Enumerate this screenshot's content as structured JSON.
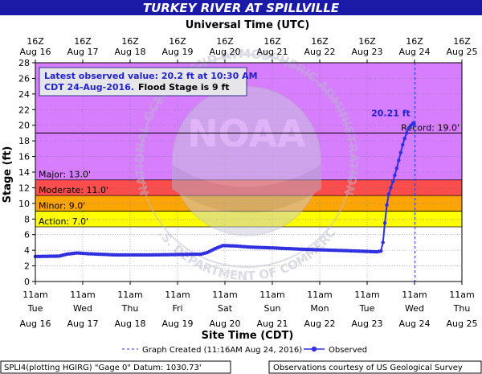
{
  "chart_data": {
    "type": "line",
    "title": "TURKEY RIVER AT SPILLVILLE",
    "top_axis_title": "Universal Time (UTC)",
    "xlabel": "Site Time (CDT)",
    "ylabel": "Stage (ft)",
    "ylim": [
      0,
      28
    ],
    "y_ticks": [
      0,
      2,
      4,
      6,
      8,
      10,
      12,
      14,
      16,
      18,
      20,
      22,
      24,
      26,
      28
    ],
    "xlim": [
      "2016-08-16 11:00",
      "2016-08-25 11:00"
    ],
    "grid": true,
    "top_ticks": [
      {
        "hour": "16Z",
        "date": "Aug 16"
      },
      {
        "hour": "16Z",
        "date": "Aug 17"
      },
      {
        "hour": "16Z",
        "date": "Aug 18"
      },
      {
        "hour": "16Z",
        "date": "Aug 19"
      },
      {
        "hour": "16Z",
        "date": "Aug 20"
      },
      {
        "hour": "16Z",
        "date": "Aug 21"
      },
      {
        "hour": "16Z",
        "date": "Aug 22"
      },
      {
        "hour": "16Z",
        "date": "Aug 23"
      },
      {
        "hour": "16Z",
        "date": "Aug 24"
      },
      {
        "hour": "16Z",
        "date": "Aug 25"
      }
    ],
    "bottom_ticks": [
      {
        "time": "11am",
        "day": "Tue",
        "date": "Aug 16"
      },
      {
        "time": "11am",
        "day": "Wed",
        "date": "Aug 17"
      },
      {
        "time": "11am",
        "day": "Thu",
        "date": "Aug 18"
      },
      {
        "time": "11am",
        "day": "Fri",
        "date": "Aug 19"
      },
      {
        "time": "11am",
        "day": "Sat",
        "date": "Aug 20"
      },
      {
        "time": "11am",
        "day": "Sun",
        "date": "Aug 21"
      },
      {
        "time": "11am",
        "day": "Mon",
        "date": "Aug 22"
      },
      {
        "time": "11am",
        "day": "Tue",
        "date": "Aug 23"
      },
      {
        "time": "11am",
        "day": "Wed",
        "date": "Aug 24"
      },
      {
        "time": "11am",
        "day": "Thu",
        "date": "Aug 25"
      }
    ],
    "flood_zones": [
      {
        "name": "Action",
        "label": "Action: 7.0'",
        "from": 7,
        "to": 9,
        "color": "#ffff00"
      },
      {
        "name": "Minor",
        "label": "Minor: 9.0'",
        "from": 9,
        "to": 11,
        "color": "#ffa500"
      },
      {
        "name": "Moderate",
        "label": "Moderate: 11.0'",
        "from": 11,
        "to": 13,
        "color": "#ff4c4c"
      },
      {
        "name": "Major",
        "label": "Major: 13.0'",
        "from": 13,
        "to": 28,
        "color": "#d77dff"
      }
    ],
    "record": {
      "label": "Record: 19.0'",
      "value": 19.0
    },
    "latest_label": "20.21 ft",
    "info_box": {
      "line1": "Latest observed value: 20.2 ft at 10:30 AM",
      "line2_prefix": "CDT 24-Aug-2016.",
      "line2_suffix": "Flood Stage is 9 ft"
    },
    "series": [
      {
        "name": "Observed",
        "color": "#3030e0",
        "points": [
          [
            "2016-08-16 11:00",
            3.2
          ],
          [
            "2016-08-16 23:00",
            3.25
          ],
          [
            "2016-08-17 03:00",
            3.5
          ],
          [
            "2016-08-17 08:00",
            3.65
          ],
          [
            "2016-08-17 14:00",
            3.55
          ],
          [
            "2016-08-18 04:00",
            3.4
          ],
          [
            "2016-08-18 20:00",
            3.4
          ],
          [
            "2016-08-19 11:00",
            3.45
          ],
          [
            "2016-08-19 23:00",
            3.5
          ],
          [
            "2016-08-20 02:00",
            3.7
          ],
          [
            "2016-08-20 06:00",
            4.2
          ],
          [
            "2016-08-20 10:00",
            4.6
          ],
          [
            "2016-08-20 16:00",
            4.55
          ],
          [
            "2016-08-21 00:00",
            4.4
          ],
          [
            "2016-08-21 11:00",
            4.3
          ],
          [
            "2016-08-22 00:00",
            4.15
          ],
          [
            "2016-08-22 11:00",
            4.05
          ],
          [
            "2016-08-23 00:00",
            3.95
          ],
          [
            "2016-08-23 11:00",
            3.85
          ],
          [
            "2016-08-23 16:00",
            3.8
          ],
          [
            "2016-08-23 18:00",
            3.9
          ],
          [
            "2016-08-23 19:00",
            5.0
          ],
          [
            "2016-08-23 20:00",
            7.5
          ],
          [
            "2016-08-23 21:00",
            9.8
          ],
          [
            "2016-08-23 22:00",
            11.2
          ],
          [
            "2016-08-23 23:00",
            12.0
          ],
          [
            "2016-08-24 00:00",
            12.8
          ],
          [
            "2016-08-24 01:00",
            13.6
          ],
          [
            "2016-08-24 02:00",
            14.5
          ],
          [
            "2016-08-24 03:00",
            15.5
          ],
          [
            "2016-08-24 04:00",
            16.5
          ],
          [
            "2016-08-24 05:00",
            17.5
          ],
          [
            "2016-08-24 06:00",
            18.3
          ],
          [
            "2016-08-24 07:00",
            19.0
          ],
          [
            "2016-08-24 08:00",
            19.6
          ],
          [
            "2016-08-24 09:00",
            19.95
          ],
          [
            "2016-08-24 10:30",
            20.21
          ]
        ]
      }
    ],
    "graph_created": {
      "time": "2016-08-24 11:16",
      "label": "Graph Created (11:16AM Aug 24, 2016)"
    },
    "legend": {
      "created_label": "Graph Created (11:16AM Aug 24, 2016)",
      "observed_label": "Observed"
    },
    "footer": {
      "left": "SPLI4(plotting HGIRG) \"Gage 0\" Datum: 1030.73'",
      "right": "Observations courtesy of US Geological Survey"
    },
    "watermark": {
      "text": "NATIONAL OCEANIC AND ATMOSPHERIC ADMINISTRATION",
      "bottom_text": "U.S. DEPARTMENT OF COMMERCE",
      "logo_text": "NOAA"
    },
    "colors": {
      "title_bar": "#1a1aa6",
      "line": "#3030e0",
      "label_blue": "#2222cc"
    }
  }
}
